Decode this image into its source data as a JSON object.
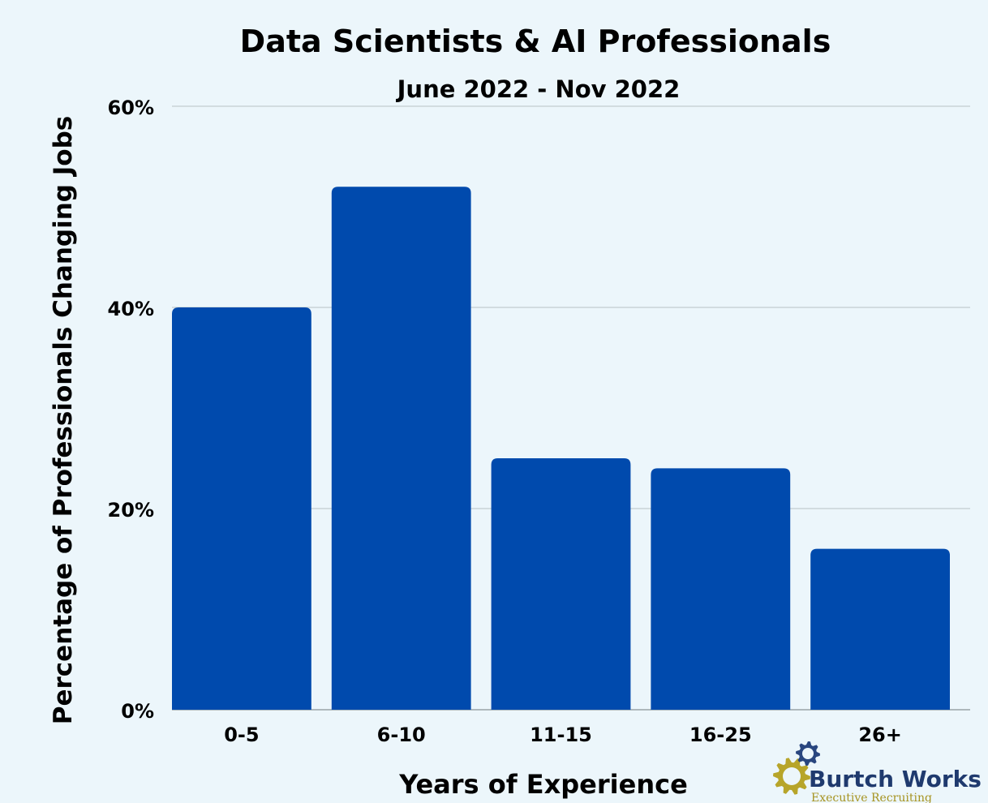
{
  "chart_data": {
    "type": "bar",
    "title": "Data Scientists & AI Professionals",
    "subtitle": "June 2022 - Nov 2022",
    "xlabel": "Years of Experience",
    "ylabel": "Percentage of Professionals Changing Jobs",
    "categories": [
      "0-5",
      "6-10",
      "11-15",
      "16-25",
      "26+"
    ],
    "values": [
      40,
      52,
      25,
      24,
      16
    ],
    "ylim": [
      0,
      60
    ],
    "yticks": [
      0,
      20,
      40,
      60
    ],
    "ytick_labels": [
      "0%",
      "20%",
      "40%",
      "60%"
    ],
    "grid": true,
    "bar_color": "#004aad"
  },
  "logo": {
    "name": "Burtch Works",
    "tagline": "Executive Recruiting",
    "name_color": "#1f3a6e",
    "tagline_color": "#a69320",
    "gear_color_large": "#b7a52a",
    "gear_color_small": "#29467f"
  }
}
